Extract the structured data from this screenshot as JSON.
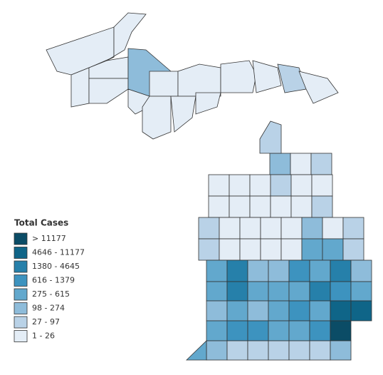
{
  "legend": {
    "title": "Total Cases",
    "items": [
      {
        "label": "> 11177",
        "color": "#0b4c66"
      },
      {
        "label": "4646 - 11177",
        "color": "#0f6588"
      },
      {
        "label": "1380 - 4645",
        "color": "#2680aa"
      },
      {
        "label": "616 - 1379",
        "color": "#3d93bf"
      },
      {
        "label": "275 - 615",
        "color": "#62a8cd"
      },
      {
        "label": "98 - 274",
        "color": "#8ebcda"
      },
      {
        "label": "27 - 97",
        "color": "#b9d2e7"
      },
      {
        "label": "1 - 26",
        "color": "#e4edf6"
      }
    ]
  }
}
